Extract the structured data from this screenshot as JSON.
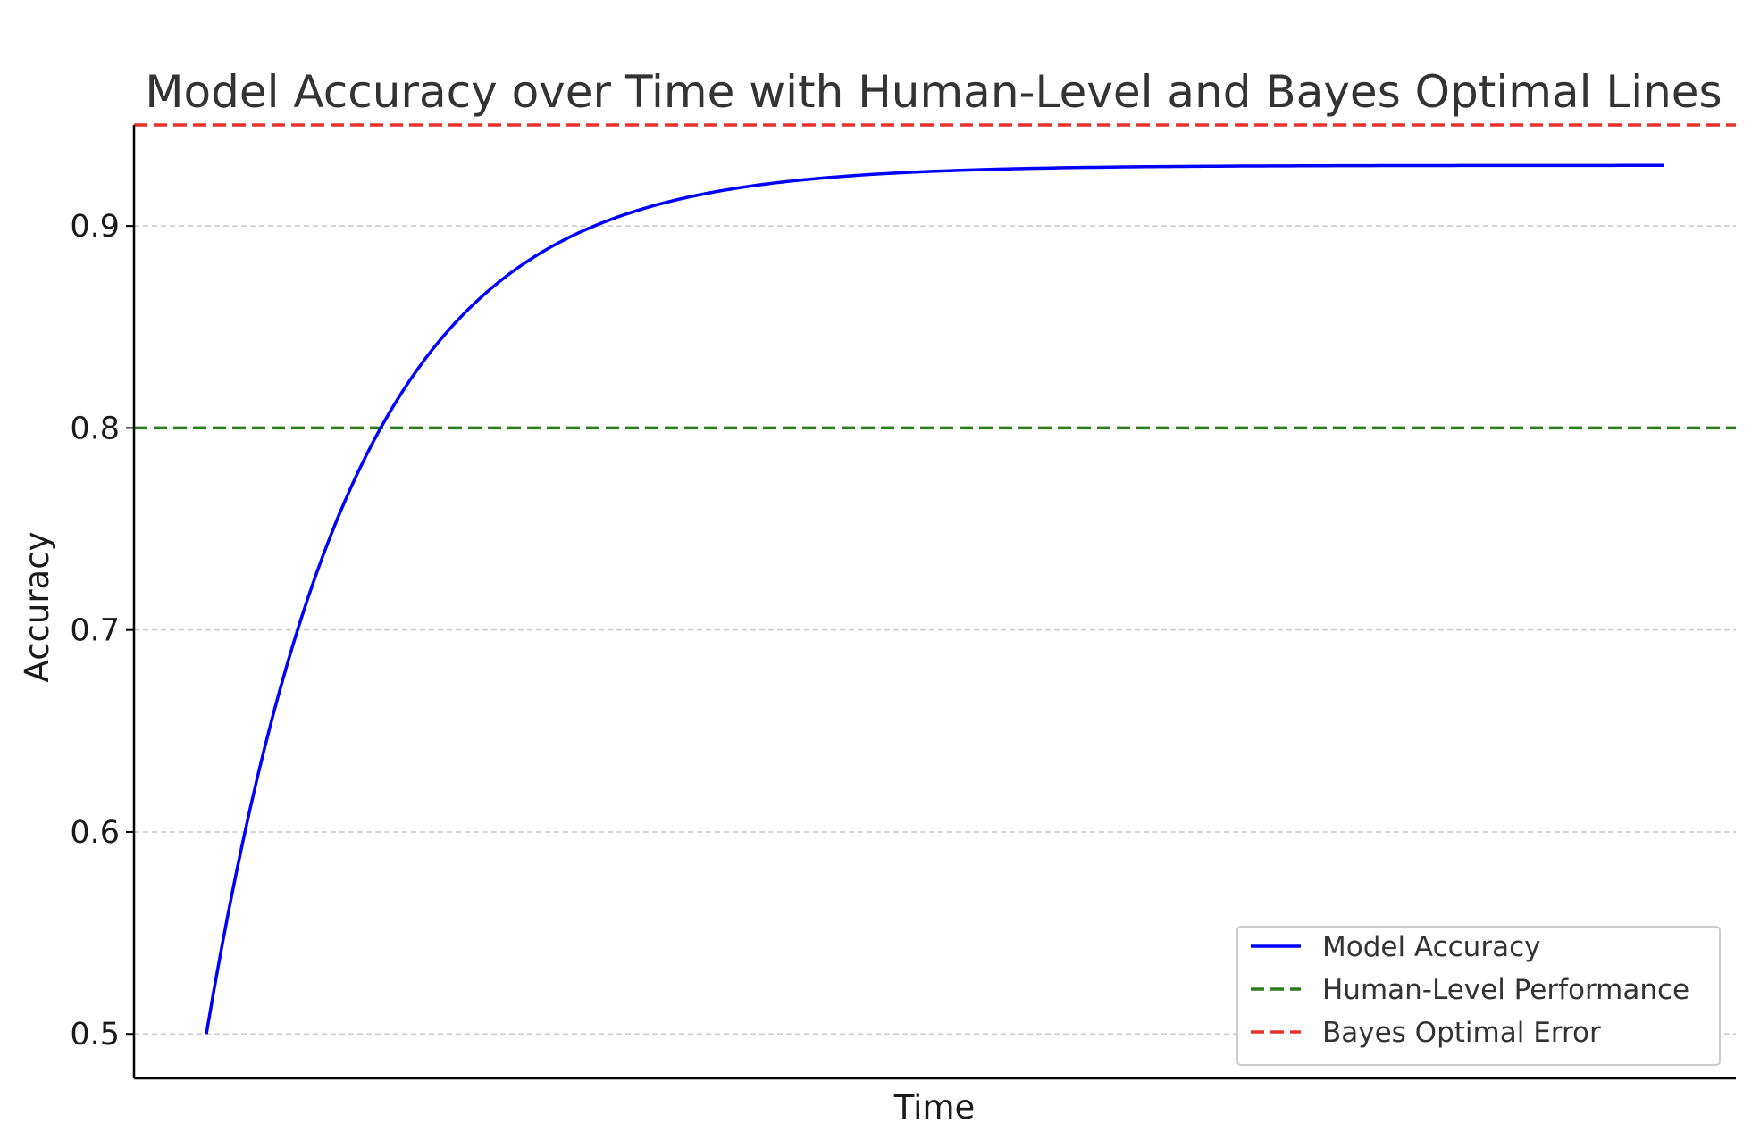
{
  "chart_data": {
    "type": "line",
    "title": "Model Accuracy over Time with Human-Level and Bayes Optimal Lines",
    "xlabel": "Time",
    "ylabel": "Accuracy",
    "ylim": [
      0.478,
      0.95
    ],
    "yticks": [
      0.5,
      0.6,
      0.7,
      0.8,
      0.9
    ],
    "ytick_labels": [
      "0.5",
      "0.6",
      "0.7",
      "0.8",
      "0.9"
    ],
    "grid": "y-dashed",
    "legend_position": "bottom-right",
    "series": [
      {
        "name": "Model Accuracy",
        "style": "solid",
        "color": "#0000ff",
        "formula": "y = 0.93 - 0.43 * exp(-0.5 * x)",
        "x": [
          0,
          0.5,
          1,
          1.5,
          2,
          2.5,
          3,
          3.5,
          4,
          4.5,
          5,
          5.5,
          6,
          6.5,
          7,
          7.5,
          8,
          8.5,
          9,
          9.5,
          10,
          11,
          12,
          13,
          14,
          15,
          16,
          17,
          18,
          19,
          20
        ],
        "y": [
          0.5,
          0.595,
          0.669,
          0.727,
          0.772,
          0.807,
          0.834,
          0.855,
          0.872,
          0.885,
          0.895,
          0.903,
          0.909,
          0.914,
          0.917,
          0.92,
          0.922,
          0.924,
          0.925,
          0.926,
          0.927,
          0.928,
          0.929,
          0.93,
          0.93,
          0.93,
          0.93,
          0.93,
          0.93,
          0.93,
          0.93
        ]
      },
      {
        "name": "Human-Level Performance",
        "style": "dashed",
        "color": "#2e7d1e",
        "value": 0.8
      },
      {
        "name": "Bayes Optimal Error",
        "style": "dashed",
        "color": "#e8312a",
        "value": 0.95
      }
    ],
    "legend": [
      {
        "label": "Model Accuracy",
        "color": "#0000ff",
        "style": "solid"
      },
      {
        "label": "Human-Level Performance",
        "color": "#2e7d1e",
        "style": "dashed"
      },
      {
        "label": "Bayes Optimal Error",
        "color": "#e8312a",
        "style": "dashed"
      }
    ]
  }
}
